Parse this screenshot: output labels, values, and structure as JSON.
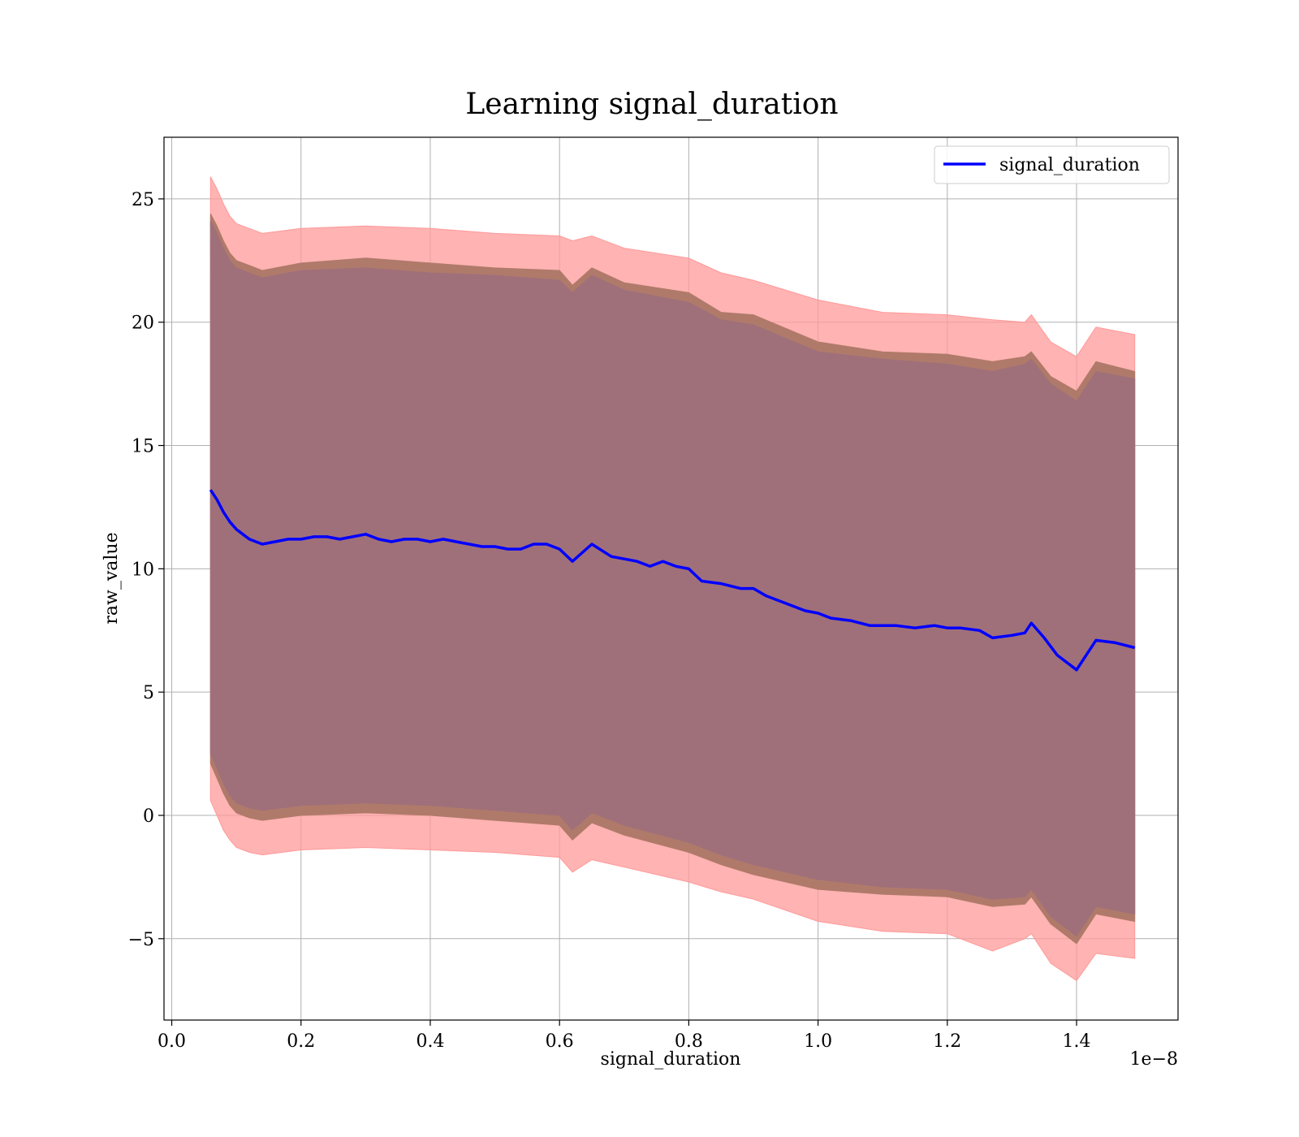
{
  "chart_data": {
    "type": "line",
    "title": "Learning signal_duration",
    "xlabel": "signal_duration",
    "ylabel": "raw_value",
    "x_offset_text": "1e−8",
    "xlim": [
      -0.012,
      1.557
    ],
    "ylim": [
      -8.3,
      27.5
    ],
    "x_ticks": [
      0.0,
      0.2,
      0.4,
      0.6,
      0.8,
      1.0,
      1.2,
      1.4
    ],
    "x_tick_labels": [
      "0.0",
      "0.2",
      "0.4",
      "0.6",
      "0.8",
      "1.0",
      "1.2",
      "1.4"
    ],
    "y_ticks": [
      -5,
      0,
      5,
      10,
      15,
      20,
      25
    ],
    "y_tick_labels": [
      "−5",
      "0",
      "5",
      "10",
      "15",
      "20",
      "25"
    ],
    "grid": true,
    "legend_position": "top-right",
    "colors": {
      "line": "#0000ff",
      "band_outer": "#ff9999",
      "band_middle": "#b07a6a",
      "band_inner": "#a0707a",
      "grid": "#b0b0b0"
    },
    "series": [
      {
        "name": "signal_duration",
        "x": [
          0.06,
          0.07,
          0.08,
          0.09,
          0.1,
          0.12,
          0.14,
          0.16,
          0.18,
          0.2,
          0.22,
          0.24,
          0.26,
          0.28,
          0.3,
          0.32,
          0.34,
          0.36,
          0.38,
          0.4,
          0.42,
          0.44,
          0.46,
          0.48,
          0.5,
          0.52,
          0.54,
          0.56,
          0.58,
          0.6,
          0.62,
          0.65,
          0.68,
          0.7,
          0.72,
          0.74,
          0.76,
          0.78,
          0.8,
          0.82,
          0.85,
          0.88,
          0.9,
          0.92,
          0.95,
          0.98,
          1.0,
          1.02,
          1.05,
          1.08,
          1.1,
          1.12,
          1.15,
          1.18,
          1.2,
          1.22,
          1.25,
          1.27,
          1.3,
          1.32,
          1.33,
          1.35,
          1.37,
          1.4,
          1.43,
          1.46,
          1.49
        ],
        "values": [
          13.2,
          12.8,
          12.3,
          11.9,
          11.6,
          11.2,
          11.0,
          11.1,
          11.2,
          11.2,
          11.3,
          11.3,
          11.2,
          11.3,
          11.4,
          11.2,
          11.1,
          11.2,
          11.2,
          11.1,
          11.2,
          11.1,
          11.0,
          10.9,
          10.9,
          10.8,
          10.8,
          11.0,
          11.0,
          10.8,
          10.3,
          11.0,
          10.5,
          10.4,
          10.3,
          10.1,
          10.3,
          10.1,
          10.0,
          9.5,
          9.4,
          9.2,
          9.2,
          8.9,
          8.6,
          8.3,
          8.2,
          8.0,
          7.9,
          7.7,
          7.7,
          7.7,
          7.6,
          7.7,
          7.6,
          7.6,
          7.5,
          7.2,
          7.3,
          7.4,
          7.8,
          7.2,
          6.5,
          5.9,
          7.1,
          7.0,
          6.8
        ]
      }
    ],
    "bands": [
      {
        "x": [
          0.06,
          0.07,
          0.08,
          0.09,
          0.1,
          0.12,
          0.14,
          0.2,
          0.3,
          0.4,
          0.5,
          0.6,
          0.62,
          0.65,
          0.7,
          0.8,
          0.85,
          0.9,
          1.0,
          1.1,
          1.2,
          1.27,
          1.32,
          1.33,
          1.36,
          1.4,
          1.43,
          1.49
        ],
        "upper": [
          25.9,
          25.4,
          24.8,
          24.3,
          24.0,
          23.8,
          23.6,
          23.8,
          23.9,
          23.8,
          23.6,
          23.5,
          23.3,
          23.5,
          23.0,
          22.6,
          22.0,
          21.7,
          20.9,
          20.4,
          20.3,
          20.1,
          20.0,
          20.3,
          19.2,
          18.6,
          19.8,
          19.5
        ],
        "lower": [
          0.6,
          0.0,
          -0.6,
          -1.0,
          -1.3,
          -1.5,
          -1.6,
          -1.4,
          -1.3,
          -1.4,
          -1.5,
          -1.7,
          -2.3,
          -1.8,
          -2.1,
          -2.7,
          -3.1,
          -3.4,
          -4.3,
          -4.7,
          -4.8,
          -5.5,
          -5.0,
          -4.8,
          -6.0,
          -6.7,
          -5.6,
          -5.8
        ]
      },
      {
        "x": [
          0.06,
          0.07,
          0.08,
          0.09,
          0.1,
          0.12,
          0.14,
          0.2,
          0.3,
          0.4,
          0.5,
          0.6,
          0.62,
          0.65,
          0.7,
          0.8,
          0.85,
          0.9,
          1.0,
          1.1,
          1.2,
          1.27,
          1.32,
          1.33,
          1.36,
          1.4,
          1.43,
          1.49
        ],
        "upper": [
          24.4,
          23.9,
          23.3,
          22.8,
          22.5,
          22.3,
          22.1,
          22.4,
          22.6,
          22.4,
          22.2,
          22.1,
          21.5,
          22.2,
          21.6,
          21.2,
          20.4,
          20.3,
          19.2,
          18.8,
          18.7,
          18.4,
          18.6,
          18.8,
          17.8,
          17.2,
          18.4,
          18.0
        ],
        "lower": [
          2.1,
          1.5,
          0.9,
          0.4,
          0.1,
          -0.1,
          -0.2,
          0.0,
          0.1,
          0.0,
          -0.2,
          -0.4,
          -1.0,
          -0.3,
          -0.8,
          -1.5,
          -2.0,
          -2.4,
          -3.0,
          -3.2,
          -3.3,
          -3.7,
          -3.6,
          -3.3,
          -4.4,
          -5.2,
          -4.0,
          -4.3
        ]
      },
      {
        "x": [
          0.06,
          0.07,
          0.08,
          0.09,
          0.1,
          0.12,
          0.14,
          0.2,
          0.3,
          0.4,
          0.5,
          0.6,
          0.62,
          0.65,
          0.7,
          0.8,
          0.85,
          0.9,
          1.0,
          1.1,
          1.2,
          1.27,
          1.32,
          1.33,
          1.36,
          1.4,
          1.43,
          1.49
        ],
        "upper": [
          24.1,
          23.6,
          23.0,
          22.5,
          22.2,
          22.0,
          21.8,
          22.1,
          22.2,
          22.0,
          21.9,
          21.7,
          21.2,
          21.9,
          21.3,
          20.8,
          20.1,
          19.9,
          18.8,
          18.5,
          18.3,
          18.0,
          18.3,
          18.5,
          17.5,
          16.8,
          18.0,
          17.7
        ],
        "lower": [
          2.5,
          1.9,
          1.3,
          0.8,
          0.5,
          0.3,
          0.2,
          0.4,
          0.5,
          0.4,
          0.2,
          0.0,
          -0.6,
          0.1,
          -0.4,
          -1.1,
          -1.6,
          -2.0,
          -2.6,
          -2.9,
          -3.0,
          -3.4,
          -3.3,
          -3.0,
          -4.1,
          -4.9,
          -3.7,
          -4.0
        ]
      }
    ]
  }
}
